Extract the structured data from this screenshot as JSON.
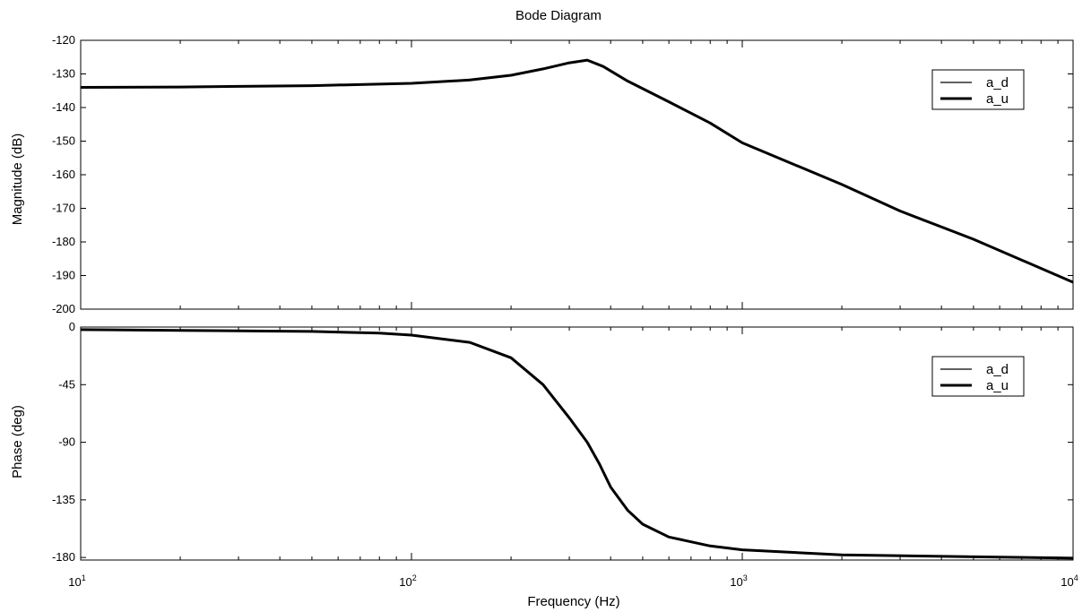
{
  "chart_data": {
    "type": "line",
    "title": "Bode Diagram",
    "xlabel": "Frequency (Hz)",
    "xscale": "log",
    "xlim": [
      10,
      10000
    ],
    "x_ticks": [
      {
        "value": 10,
        "base": "10",
        "exp": "1"
      },
      {
        "value": 100,
        "base": "10",
        "exp": "2"
      },
      {
        "value": 1000,
        "base": "10",
        "exp": "3"
      },
      {
        "value": 10000,
        "base": "10",
        "exp": "4"
      }
    ],
    "grid": false,
    "legend_position": "top-right",
    "line_color": "#000000",
    "panels": [
      {
        "id": "magnitude",
        "ylabel": "Magnitude (dB)",
        "ylim": [
          -200,
          -120
        ],
        "yticks": [
          -120,
          -130,
          -140,
          -150,
          -160,
          -170,
          -180,
          -190,
          -200
        ],
        "series": [
          {
            "name": "a_d",
            "line_width": 1.2,
            "x": [
              10,
              20,
              50,
              100,
              150,
              200,
              250,
              300,
              340,
              380,
              450,
              600,
              800,
              1000,
              2000,
              3000,
              5000,
              10000
            ],
            "y": [
              -134,
              -133.9,
              -133.5,
              -132.8,
              -131.8,
              -130.4,
              -128.5,
              -126.7,
              -125.9,
              -127.8,
              -132.1,
              -138.3,
              -144.6,
              -150.5,
              -162.9,
              -170.8,
              -179.2,
              -192
            ]
          },
          {
            "name": "a_u",
            "line_width": 3,
            "x": [
              10,
              20,
              50,
              100,
              150,
              200,
              250,
              300,
              340,
              380,
              450,
              600,
              800,
              1000,
              2000,
              3000,
              5000,
              10000
            ],
            "y": [
              -134,
              -133.9,
              -133.5,
              -132.8,
              -131.8,
              -130.4,
              -128.5,
              -126.7,
              -125.9,
              -127.8,
              -132.1,
              -138.3,
              -144.6,
              -150.5,
              -162.9,
              -170.8,
              -179.2,
              -192
            ]
          }
        ]
      },
      {
        "id": "phase",
        "ylabel": "Phase (deg)",
        "ylim": [
          -182,
          0
        ],
        "yticks": [
          0,
          -45,
          -90,
          -135,
          -180
        ],
        "series": [
          {
            "name": "a_d",
            "line_width": 1.2,
            "x": [
              10,
              20,
              50,
              80,
              100,
              150,
              200,
              250,
              300,
              340,
              370,
              400,
              450,
              500,
              600,
              800,
              1000,
              2000,
              5000,
              10000
            ],
            "y": [
              -2,
              -2.6,
              -3.4,
              -4.7,
              -6.3,
              -12,
              -24,
              -45,
              -71,
              -90,
              -107,
              -125,
              -143,
              -154,
              -164,
              -171,
              -174,
              -178,
              -179.5,
              -180.5
            ]
          },
          {
            "name": "a_u",
            "line_width": 3,
            "x": [
              10,
              20,
              50,
              80,
              100,
              150,
              200,
              250,
              300,
              340,
              370,
              400,
              450,
              500,
              600,
              800,
              1000,
              2000,
              5000,
              10000
            ],
            "y": [
              -2,
              -2.6,
              -3.4,
              -4.7,
              -6.3,
              -12,
              -24,
              -45,
              -71,
              -90,
              -107,
              -125,
              -143,
              -154,
              -164,
              -171,
              -174,
              -178,
              -179.5,
              -180.5
            ]
          }
        ]
      }
    ]
  }
}
